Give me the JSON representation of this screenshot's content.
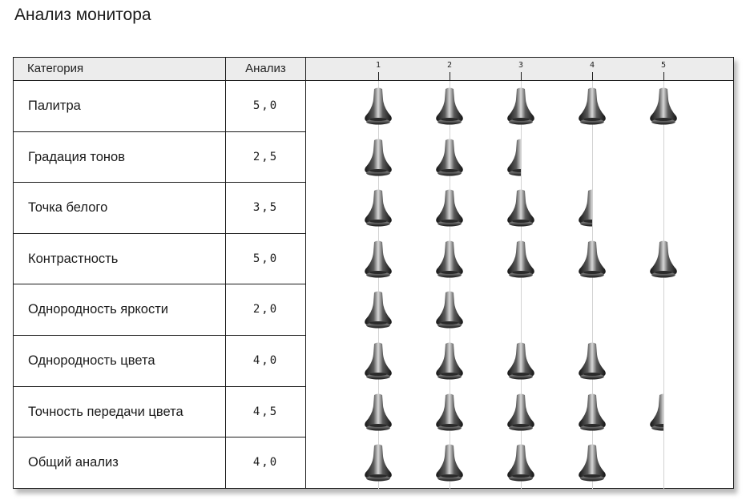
{
  "page": {
    "title": "Анализ монитора"
  },
  "table": {
    "headers": {
      "category": "Категория",
      "analysis": "Анализ"
    },
    "scale": {
      "ticks": [
        "1",
        "2",
        "3",
        "4",
        "5"
      ],
      "max": 5
    },
    "rating_icon": "bell-icon",
    "rows": [
      {
        "category": "Палитра",
        "score_text": "5,0",
        "score": 5.0
      },
      {
        "category": "Градация тонов",
        "score_text": "2,5",
        "score": 2.5
      },
      {
        "category": "Точка белого",
        "score_text": "3,5",
        "score": 3.5
      },
      {
        "category": "Контрастность",
        "score_text": "5,0",
        "score": 5.0
      },
      {
        "category": "Однородность яркости",
        "score_text": "2,0",
        "score": 2.0
      },
      {
        "category": "Однородность цвета",
        "score_text": "4,0",
        "score": 4.0
      },
      {
        "category": "Точность передачи цвета",
        "score_text": "4,5",
        "score": 4.5
      },
      {
        "category": "Общий анализ",
        "score_text": "4,0",
        "score": 4.0
      }
    ]
  },
  "colors": {
    "header_bg": "#ececec",
    "border": "#1a1a1a",
    "gridline": "#d2d2d2",
    "icon_dark": "#141414",
    "icon_light": "#d8d8d8"
  }
}
